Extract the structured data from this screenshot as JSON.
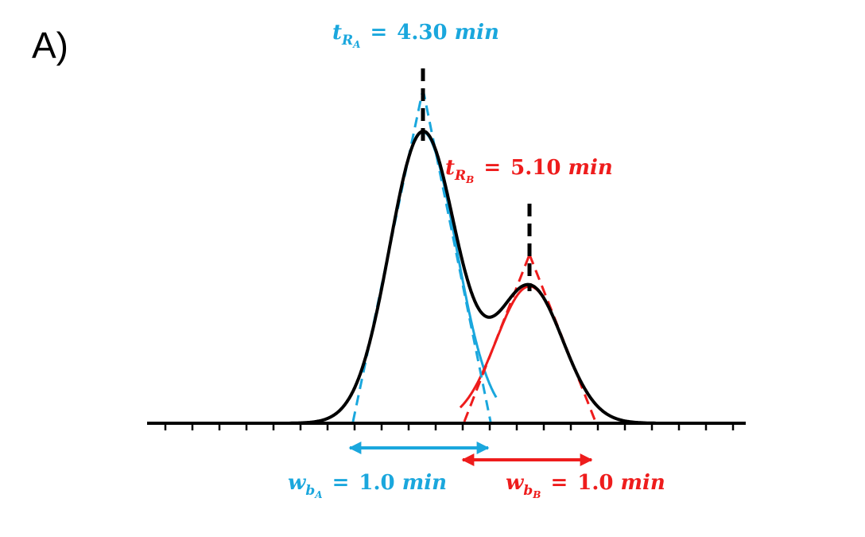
{
  "panel_label": "A)",
  "colors": {
    "peak_a": "#1aa7dd",
    "peak_b": "#ee1c1c",
    "sum": "#000000"
  },
  "labels": {
    "tra": {
      "var": "t",
      "sub": "R",
      "subsub": "A",
      "eq": "=",
      "value": "4.30",
      "unit": "min"
    },
    "trb": {
      "var": "t",
      "sub": "R",
      "subsub": "B",
      "eq": "=",
      "value": "5.10",
      "unit": "min"
    },
    "wba": {
      "var": "w",
      "sub": "b",
      "subsub": "A",
      "eq": "=",
      "value": "1.0",
      "unit": "min"
    },
    "wbb": {
      "var": "w",
      "sub": "b",
      "subsub": "B",
      "eq": "=",
      "value": "1.0",
      "unit": "min"
    }
  },
  "peaks": [
    {
      "name": "A",
      "retention_time_min": 4.3,
      "base_width_min": 1.0,
      "relative_height": 1.0
    },
    {
      "name": "B",
      "retention_time_min": 5.1,
      "base_width_min": 1.0,
      "relative_height": 0.47
    }
  ]
}
